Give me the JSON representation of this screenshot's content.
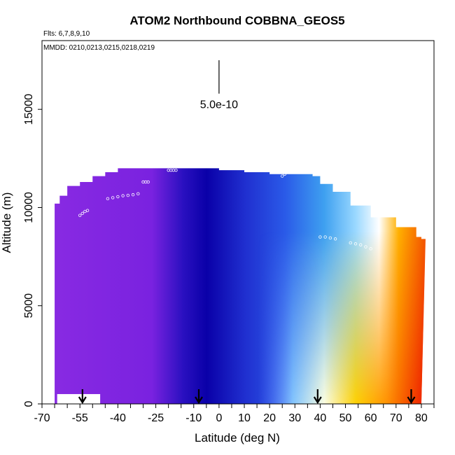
{
  "chart_data": {
    "type": "heatmap",
    "title": "ATOM2 Northbound COBBNA_GEOS5",
    "flights_note": "Flts: 6,7,8,9,10",
    "dates_note": "MMDD: 0210,0213,0215,0218,0219",
    "xlabel": "Latitude (deg N)",
    "ylabel": "Altitude (m)",
    "xlim": [
      -70,
      85
    ],
    "ylim": [
      0,
      18500
    ],
    "x_ticks": [
      -70,
      -55,
      -40,
      -25,
      -10,
      0,
      10,
      20,
      30,
      40,
      50,
      60,
      70,
      80
    ],
    "x_tick_labels": [
      "-70",
      "-55",
      "-40",
      "-25",
      "-10",
      "0",
      "10",
      "20",
      "30",
      "40",
      "50",
      "60",
      "70",
      "80"
    ],
    "x_minor_step": 5,
    "y_ticks": [
      0,
      5000,
      10000,
      15000
    ],
    "y_tick_labels": [
      "0",
      "5000",
      "10000",
      "15000"
    ],
    "scale_bar": {
      "label": "5.0e-10",
      "latitude": 0,
      "altitude_range": [
        15800,
        17500
      ]
    },
    "arrows_latitude": [
      -54,
      -8,
      39,
      76
    ],
    "ceiling_profile": [
      [
        -65,
        10200
      ],
      [
        -63,
        10600
      ],
      [
        -60,
        11100
      ],
      [
        -55,
        11300
      ],
      [
        -50,
        11600
      ],
      [
        -45,
        11800
      ],
      [
        -40,
        12000
      ],
      [
        -35,
        12000
      ],
      [
        -30,
        12000
      ],
      [
        -20,
        12000
      ],
      [
        -12,
        12000
      ],
      [
        -6,
        12000
      ],
      [
        0,
        11900
      ],
      [
        10,
        11800
      ],
      [
        20,
        11700
      ],
      [
        30,
        11700
      ],
      [
        37,
        11600
      ],
      [
        40,
        11200
      ],
      [
        45,
        10800
      ],
      [
        52,
        10100
      ],
      [
        60,
        9500
      ],
      [
        70,
        9000
      ],
      [
        78,
        8500
      ],
      [
        80,
        8400
      ]
    ],
    "floor_gap": {
      "lat_range": [
        -64,
        -47
      ],
      "alt_top": 500
    },
    "flight_tracks": [
      {
        "lat": [
          -44,
          -42,
          -40,
          -38,
          -36,
          -34,
          -32
        ],
        "alt": [
          10450,
          10500,
          10550,
          10600,
          10620,
          10650,
          10700
        ]
      },
      {
        "lat": [
          -55,
          -54,
          -53,
          -52
        ],
        "alt": [
          9600,
          9700,
          9800,
          9850
        ]
      },
      {
        "lat": [
          -30,
          -29,
          -28
        ],
        "alt": [
          11300,
          11300,
          11300
        ]
      },
      {
        "lat": [
          -20,
          -19,
          -18,
          -17
        ],
        "alt": [
          11900,
          11900,
          11900,
          11900
        ]
      },
      {
        "lat": [
          25,
          26,
          27,
          28,
          29,
          30,
          31,
          32,
          33
        ],
        "alt": [
          11600,
          11700,
          11800,
          11800,
          11800,
          11900,
          11900,
          11900,
          11900
        ]
      },
      {
        "lat": [
          40,
          42,
          44,
          46
        ],
        "alt": [
          8500,
          8500,
          8450,
          8400
        ]
      },
      {
        "lat": [
          52,
          54,
          56,
          58,
          60
        ],
        "alt": [
          8200,
          8150,
          8100,
          8000,
          7900
        ]
      }
    ]
  }
}
